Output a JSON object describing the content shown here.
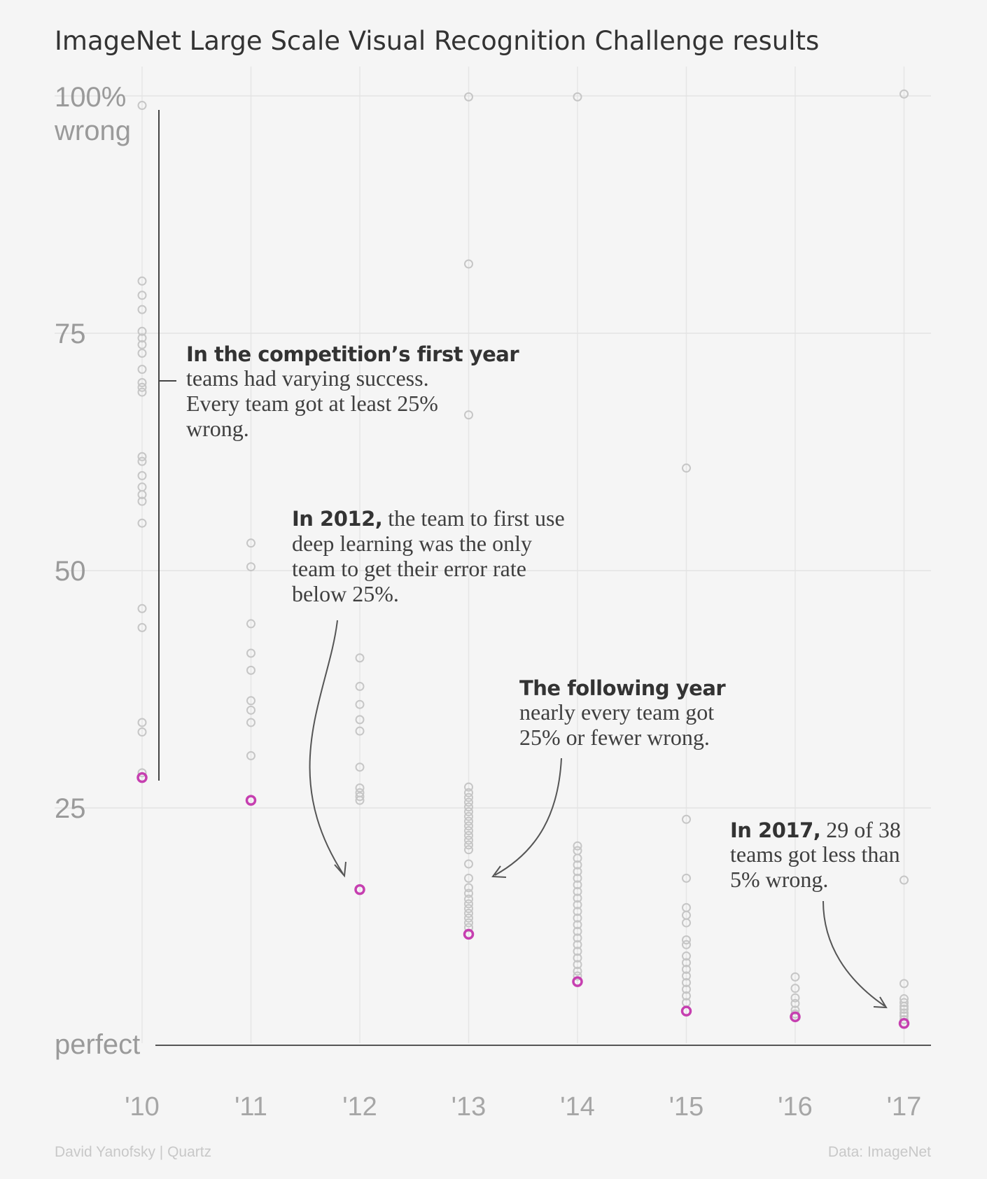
{
  "title": "ImageNet Large Scale Visual Recognition Challenge results",
  "footer": {
    "left": "David Yanofsky | Quartz",
    "right": "Data: ImageNet"
  },
  "colors": {
    "team": "#c6c6c6",
    "best": "#c63fb0",
    "text": "#333333"
  },
  "chart_data": {
    "type": "scatter",
    "title": "ImageNet Large Scale Visual Recognition Challenge results",
    "xlabel": "",
    "ylabel": "",
    "y_unit": "% wrong (error rate)",
    "ylim": [
      0,
      100
    ],
    "grid": true,
    "y_ticks": [
      {
        "value": 100,
        "lines": [
          "100%",
          "wrong"
        ]
      },
      {
        "value": 75,
        "lines": [
          "75"
        ]
      },
      {
        "value": 50,
        "lines": [
          "50"
        ]
      },
      {
        "value": 25,
        "lines": [
          "25"
        ]
      },
      {
        "value": 0,
        "lines": [
          "perfect"
        ]
      }
    ],
    "x_ticks": [
      "'10",
      "'11",
      "'12",
      "'13",
      "'14",
      "'15",
      "'16",
      "'17"
    ],
    "series": [
      {
        "year": 2010,
        "best": 28.2,
        "values": [
          99.0,
          80.5,
          79.0,
          77.5,
          75.2,
          74.5,
          73.8,
          72.9,
          71.2,
          69.8,
          69.3,
          68.8,
          62.0,
          61.5,
          60.0,
          58.8,
          58.0,
          57.3,
          55.0,
          46.0,
          44.0,
          34.0,
          33.0,
          28.7
        ]
      },
      {
        "year": 2011,
        "best": 25.8,
        "values": [
          52.9,
          50.4,
          44.4,
          41.3,
          39.5,
          36.3,
          35.3,
          34.0,
          30.5
        ]
      },
      {
        "year": 2012,
        "best": 16.4,
        "values": [
          40.8,
          37.8,
          35.9,
          34.3,
          33.1,
          29.3,
          27.1,
          26.6,
          26.2,
          25.8
        ]
      },
      {
        "year": 2013,
        "best": 11.7,
        "values": [
          99.9,
          82.3,
          66.4,
          27.2,
          26.6,
          26.1,
          25.6,
          25.1,
          24.6,
          24.1,
          23.6,
          23.1,
          22.6,
          22.1,
          21.6,
          21.1,
          20.6,
          19.1,
          17.6,
          16.6,
          16.0,
          15.4,
          14.9,
          14.4,
          13.9,
          13.4,
          12.9,
          12.4
        ]
      },
      {
        "year": 2014,
        "best": 6.7,
        "values": [
          99.9,
          21.0,
          20.5,
          19.7,
          19.0,
          18.3,
          17.6,
          16.9,
          16.2,
          15.5,
          14.8,
          14.1,
          13.4,
          12.7,
          12.0,
          11.3,
          10.6,
          9.9,
          9.2,
          8.5,
          7.8,
          7.3
        ]
      },
      {
        "year": 2015,
        "best": 3.6,
        "values": [
          60.8,
          23.8,
          17.6,
          14.5,
          13.7,
          12.9,
          11.1,
          10.6,
          9.4,
          8.7,
          8.0,
          7.3,
          6.6,
          5.9,
          5.2,
          4.5
        ]
      },
      {
        "year": 2016,
        "best": 3.0,
        "values": [
          7.2,
          6.0,
          5.0,
          4.4,
          3.7,
          3.3
        ]
      },
      {
        "year": 2017,
        "best": 2.3,
        "values": [
          100.2,
          17.4,
          6.5,
          4.9,
          4.5,
          4.1,
          3.8,
          3.4,
          3.1,
          2.7
        ]
      }
    ]
  },
  "annotations": {
    "first_year": {
      "bold": "In the competition’s first year",
      "lines": [
        "teams had varying success.",
        "Every team got at least 25%",
        "wrong."
      ]
    },
    "y2012": {
      "bold": "In 2012,",
      "first": " the team to first use",
      "lines": [
        "deep learning was the only",
        "team to get their error rate",
        "below 25%."
      ]
    },
    "following": {
      "bold": "The following year",
      "lines": [
        "nearly every team got",
        "25% or fewer wrong."
      ]
    },
    "y2017": {
      "bold": "In 2017,",
      "first": " 29 of 38",
      "lines": [
        "teams got less than",
        "5% wrong."
      ]
    }
  }
}
